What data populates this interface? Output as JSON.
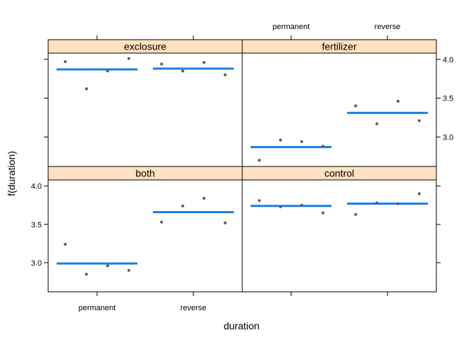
{
  "chart_data": {
    "type": "scatter",
    "xlabel": "duration",
    "ylabel": "f(duration)",
    "x_categories": [
      "permanent",
      "reverse"
    ],
    "ylim": [
      2.62,
      4.08
    ],
    "y_ticks": [
      "3.0",
      "3.5",
      "4.0"
    ],
    "colors": {
      "strip": "#ffe0c0",
      "fit_line": "#1a7fe8",
      "points": "#606060",
      "frame": "#000000"
    },
    "panels": [
      {
        "name": "exclosure",
        "groups": [
          {
            "category": "permanent",
            "points": [
              3.97,
              3.62,
              3.85,
              4.01
            ],
            "fit": 3.87
          },
          {
            "category": "reverse",
            "points": [
              3.94,
              3.85,
              3.96,
              3.8
            ],
            "fit": 3.88
          }
        ]
      },
      {
        "name": "fertilizer",
        "groups": [
          {
            "category": "permanent",
            "points": [
              2.7,
              2.96,
              2.94,
              2.88
            ],
            "fit": 2.87
          },
          {
            "category": "reverse",
            "points": [
              3.4,
              3.17,
              3.46,
              3.21
            ],
            "fit": 3.31
          }
        ]
      },
      {
        "name": "both",
        "groups": [
          {
            "category": "permanent",
            "points": [
              3.24,
              2.85,
              2.96,
              2.9
            ],
            "fit": 2.99
          },
          {
            "category": "reverse",
            "points": [
              3.53,
              3.74,
              3.84,
              3.52
            ],
            "fit": 3.66
          }
        ]
      },
      {
        "name": "control",
        "groups": [
          {
            "category": "permanent",
            "points": [
              3.81,
              3.73,
              3.75,
              3.65
            ],
            "fit": 3.74
          },
          {
            "category": "reverse",
            "points": [
              3.63,
              3.78,
              3.77,
              3.9
            ],
            "fit": 3.77
          }
        ]
      }
    ]
  }
}
